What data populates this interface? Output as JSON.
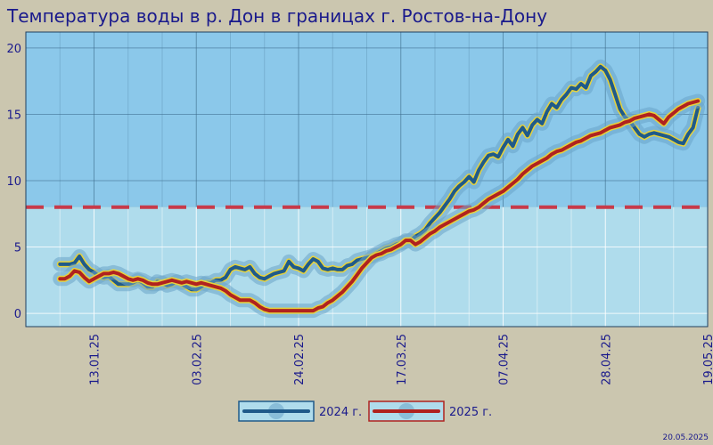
{
  "chart_data": {
    "type": "line",
    "title": "Температура воды в р. Дон в границах г. Ростов-на-Дону",
    "xlabel": "",
    "ylabel": "",
    "ylim": [
      -1,
      21.2
    ],
    "yticks": [
      0,
      5,
      10,
      15,
      20
    ],
    "x_tick_labels": [
      "13.01.25",
      "03.02.25",
      "24.02.25",
      "17.03.25",
      "07.04.25",
      "28.04.25",
      "19.05.25"
    ],
    "x_range_days": [
      -7,
      133
    ],
    "threshold": 8,
    "grid": true,
    "legend": "bottom-center",
    "series": [
      {
        "name": "2024 г.",
        "color": "#1f5a8a",
        "x": [
          0,
          1,
          2,
          3,
          4,
          5,
          6,
          7,
          8,
          9,
          10,
          11,
          12,
          13,
          14,
          15,
          16,
          17,
          18,
          19,
          20,
          21,
          22,
          23,
          24,
          25,
          26,
          27,
          28,
          29,
          30,
          31,
          32,
          33,
          34,
          35,
          36,
          37,
          38,
          39,
          40,
          41,
          42,
          43,
          44,
          45,
          46,
          47,
          48,
          49,
          50,
          51,
          52,
          53,
          54,
          55,
          56,
          57,
          58,
          59,
          60,
          61,
          62,
          63,
          64,
          65,
          66,
          67,
          68,
          69,
          70,
          71,
          72,
          73,
          74,
          75,
          76,
          77,
          78,
          79,
          80,
          81,
          82,
          83,
          84,
          85,
          86,
          87,
          88,
          89,
          90,
          91,
          92,
          93,
          94,
          95,
          96,
          97,
          98,
          99,
          100,
          101,
          102,
          103,
          104,
          105,
          106,
          107,
          108,
          109,
          110,
          111,
          112,
          113,
          114,
          115,
          116,
          117,
          118,
          119,
          120,
          121,
          122,
          123,
          124,
          125,
          126,
          127,
          128,
          129,
          130,
          131
        ],
        "values": [
          3.7,
          3.7,
          3.7,
          3.8,
          4.3,
          3.7,
          3.3,
          3.1,
          2.8,
          2.7,
          2.8,
          2.5,
          2.2,
          2.2,
          2.2,
          2.3,
          2.5,
          2.3,
          2.0,
          2.0,
          2.4,
          2.3,
          2.1,
          2.2,
          2.4,
          2.2,
          2.0,
          1.8,
          1.8,
          2.0,
          2.3,
          2.3,
          2.5,
          2.5,
          2.7,
          3.3,
          3.5,
          3.4,
          3.3,
          3.5,
          3.0,
          2.7,
          2.6,
          2.8,
          3.0,
          3.1,
          3.2,
          3.9,
          3.5,
          3.4,
          3.2,
          3.7,
          4.1,
          3.9,
          3.4,
          3.3,
          3.4,
          3.3,
          3.3,
          3.6,
          3.7,
          4.0,
          4.1,
          4.2,
          4.3,
          4.5,
          4.7,
          4.9,
          5.0,
          5.2,
          5.3,
          5.4,
          5.5,
          5.8,
          6.0,
          6.3,
          6.8,
          7.2,
          7.6,
          8.1,
          8.6,
          9.2,
          9.6,
          9.9,
          10.3,
          9.9,
          10.8,
          11.4,
          11.9,
          12.0,
          11.8,
          12.5,
          13.1,
          12.6,
          13.5,
          14.0,
          13.4,
          14.2,
          14.6,
          14.3,
          15.2,
          15.8,
          15.5,
          16.1,
          16.5,
          17.0,
          16.9,
          17.3,
          17.0,
          17.9,
          18.2,
          18.6,
          18.3,
          17.6,
          16.5,
          15.4,
          14.8,
          14.5,
          14.0,
          13.5,
          13.3,
          13.5,
          13.6,
          13.5,
          13.4,
          13.3,
          13.1,
          12.9,
          12.8,
          13.5,
          14.0,
          15.5
        ]
      },
      {
        "name": "2025 г.",
        "color": "#b0221f",
        "x": [
          0,
          1,
          2,
          3,
          4,
          5,
          6,
          7,
          8,
          9,
          10,
          11,
          12,
          13,
          14,
          15,
          16,
          17,
          18,
          19,
          20,
          21,
          22,
          23,
          24,
          25,
          26,
          27,
          28,
          29,
          30,
          31,
          32,
          33,
          34,
          35,
          36,
          37,
          38,
          39,
          40,
          41,
          42,
          43,
          44,
          45,
          46,
          47,
          48,
          49,
          50,
          51,
          52,
          53,
          54,
          55,
          56,
          57,
          58,
          59,
          60,
          61,
          62,
          63,
          64,
          65,
          66,
          67,
          68,
          69,
          70,
          71,
          72,
          73,
          74,
          75,
          76,
          77,
          78,
          79,
          80,
          81,
          82,
          83,
          84,
          85,
          86,
          87,
          88,
          89,
          90,
          91,
          92,
          93,
          94,
          95,
          96,
          97,
          98,
          99,
          100,
          101,
          102,
          103,
          104,
          105,
          106,
          107,
          108,
          109,
          110,
          111,
          112,
          113,
          114,
          115,
          116,
          117,
          118,
          119,
          120,
          121,
          122,
          123,
          124,
          125,
          126,
          127,
          128,
          129,
          130,
          131
        ],
        "values": [
          2.6,
          2.6,
          2.8,
          3.2,
          3.1,
          2.7,
          2.4,
          2.6,
          2.8,
          3.0,
          3.0,
          3.1,
          3.0,
          2.8,
          2.6,
          2.5,
          2.6,
          2.5,
          2.3,
          2.2,
          2.2,
          2.3,
          2.4,
          2.5,
          2.4,
          2.3,
          2.4,
          2.3,
          2.2,
          2.3,
          2.2,
          2.1,
          2.0,
          1.9,
          1.7,
          1.4,
          1.2,
          1.0,
          1.0,
          1.0,
          0.8,
          0.5,
          0.3,
          0.2,
          0.2,
          0.2,
          0.2,
          0.2,
          0.2,
          0.2,
          0.2,
          0.2,
          0.2,
          0.4,
          0.5,
          0.8,
          1.0,
          1.3,
          1.6,
          2.0,
          2.4,
          2.9,
          3.4,
          3.8,
          4.2,
          4.4,
          4.5,
          4.7,
          4.8,
          5.0,
          5.2,
          5.5,
          5.5,
          5.2,
          5.4,
          5.7,
          6.0,
          6.2,
          6.5,
          6.7,
          6.9,
          7.1,
          7.3,
          7.5,
          7.7,
          7.8,
          8.0,
          8.3,
          8.6,
          8.8,
          9.0,
          9.2,
          9.5,
          9.8,
          10.1,
          10.5,
          10.8,
          11.1,
          11.3,
          11.5,
          11.7,
          12.0,
          12.2,
          12.3,
          12.5,
          12.7,
          12.9,
          13.0,
          13.2,
          13.4,
          13.5,
          13.6,
          13.8,
          14.0,
          14.1,
          14.2,
          14.4,
          14.5,
          14.7,
          14.8,
          14.9,
          15.0,
          14.9,
          14.6,
          14.3,
          14.8,
          15.1,
          15.4,
          15.6,
          15.8,
          15.9,
          16.0
        ]
      }
    ]
  },
  "footer_date": "20.05.2025",
  "colors": {
    "background": "#cbc6af",
    "plot_upper": "#8bc8ea",
    "plot_lower": "#afdcec",
    "threshold_line": "#c73a4a",
    "text": "#1a1a8c"
  }
}
